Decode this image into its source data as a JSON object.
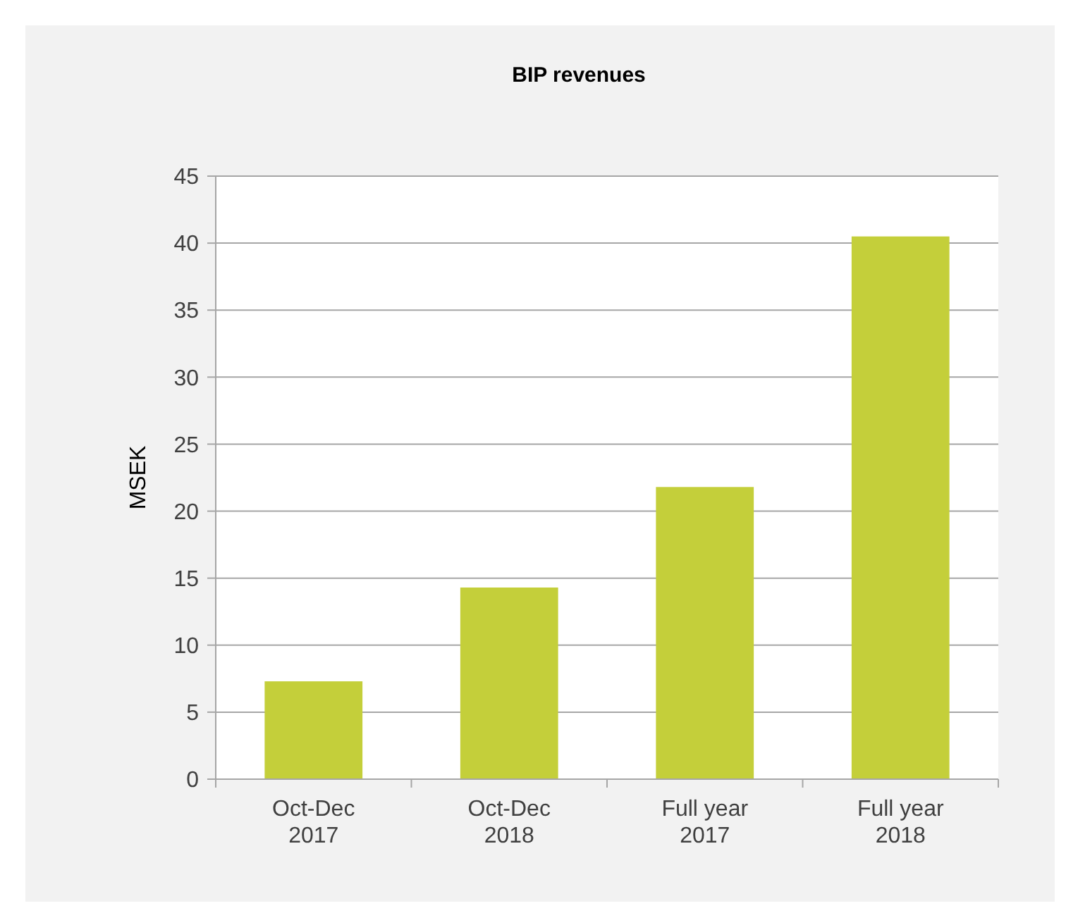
{
  "chart_data": {
    "type": "bar",
    "title": "BIP revenues",
    "ylabel": "MSEK",
    "categories": [
      "Oct-Dec\n2017",
      "Oct-Dec\n2018",
      "Full year\n2017",
      "Full year\n2018"
    ],
    "values": [
      7.3,
      14.3,
      21.8,
      40.5
    ],
    "color": "#c4cf3a",
    "ylim": [
      0,
      45
    ],
    "yticks": [
      0,
      5,
      10,
      15,
      20,
      25,
      30,
      35,
      40,
      45
    ],
    "grid": "y"
  }
}
